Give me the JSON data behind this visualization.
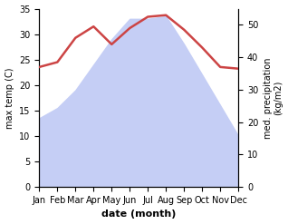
{
  "months": [
    "Jan",
    "Feb",
    "Mar",
    "Apr",
    "May",
    "Jun",
    "Jul",
    "Aug",
    "Sep",
    "Oct",
    "Nov",
    "Dec"
  ],
  "temp": [
    13.5,
    15.5,
    19.0,
    24.0,
    29.0,
    33.0,
    33.0,
    33.5,
    28.0,
    22.0,
    16.0,
    10.0
  ],
  "precip": [
    37.0,
    38.5,
    46.0,
    49.5,
    44.0,
    49.0,
    52.5,
    53.0,
    48.5,
    43.0,
    37.0,
    36.5
  ],
  "temp_color": "#cc4444",
  "precip_fill_color": "#c5cef5",
  "temp_ylim": [
    0,
    35
  ],
  "precip_ylim": [
    0,
    55
  ],
  "temp_yticks": [
    0,
    5,
    10,
    15,
    20,
    25,
    30,
    35
  ],
  "precip_yticks": [
    0,
    10,
    20,
    30,
    40,
    50
  ],
  "xlabel": "date (month)",
  "ylabel_left": "max temp (C)",
  "ylabel_right": "med. precipitation\n(kg/m2)",
  "background_color": "#ffffff"
}
